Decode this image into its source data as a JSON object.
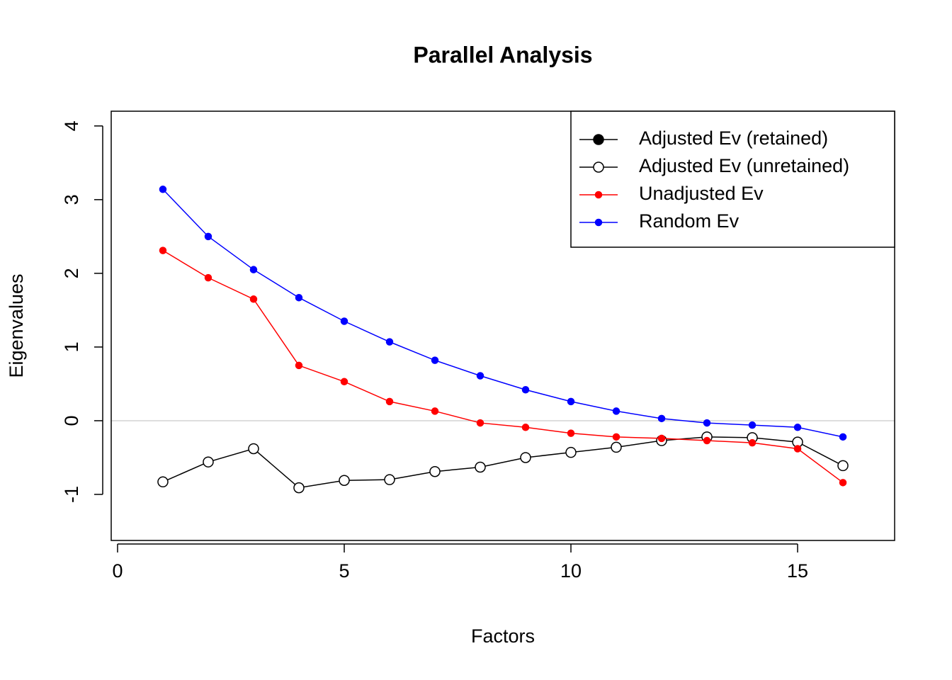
{
  "chart_data": {
    "type": "line",
    "title": "Parallel Analysis",
    "x_label": "Factors",
    "y_label": "Eigenvalues",
    "x": [
      1,
      2,
      3,
      4,
      5,
      6,
      7,
      8,
      9,
      10,
      11,
      12,
      13,
      14,
      15,
      16
    ],
    "series": [
      {
        "name": "Adjusted Ev (retained)",
        "color": "#000000",
        "marker": "filled",
        "values": [
          null,
          null,
          null,
          null,
          null,
          null,
          null,
          null,
          null,
          null,
          null,
          null,
          null,
          null,
          null,
          null
        ]
      },
      {
        "name": "Adjusted Ev (unretained)",
        "color": "#000000",
        "marker": "open",
        "values": [
          -0.83,
          -0.56,
          -0.38,
          -0.91,
          -0.81,
          -0.8,
          -0.69,
          -0.63,
          -0.5,
          -0.43,
          -0.36,
          -0.27,
          -0.22,
          -0.23,
          -0.29,
          -0.61
        ]
      },
      {
        "name": "Unadjusted Ev",
        "color": "#ff0000",
        "marker": "small",
        "values": [
          2.31,
          1.94,
          1.65,
          0.75,
          0.53,
          0.26,
          0.13,
          -0.03,
          -0.09,
          -0.17,
          -0.22,
          -0.24,
          -0.27,
          -0.3,
          -0.38,
          -0.84
        ]
      },
      {
        "name": "Random Ev",
        "color": "#0000ff",
        "marker": "small",
        "values": [
          3.14,
          2.5,
          2.05,
          1.67,
          1.35,
          1.07,
          0.82,
          0.61,
          0.42,
          0.26,
          0.13,
          0.03,
          -0.03,
          -0.06,
          -0.09,
          -0.22
        ]
      }
    ],
    "xlim": [
      -0.14,
      17.14
    ],
    "xticks": [
      0,
      5,
      10,
      15
    ],
    "ylim": [
      -1.625,
      4.2
    ],
    "yticks": [
      -1,
      0,
      1,
      2,
      3,
      4
    ],
    "hline": 0,
    "legend": "topright"
  }
}
